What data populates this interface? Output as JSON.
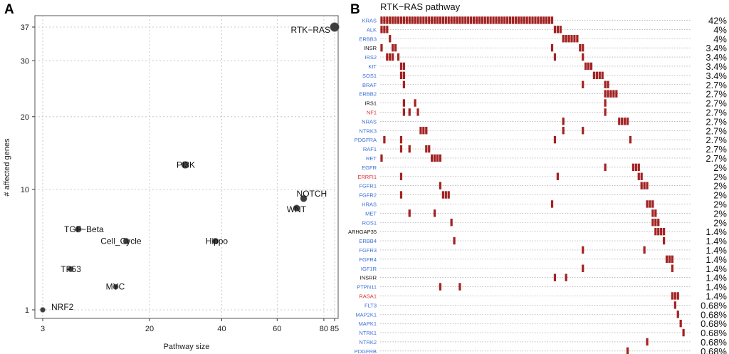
{
  "chart_data": [
    {
      "panel": "A",
      "type": "scatter",
      "title": "",
      "xlabel": "Pathway size",
      "ylabel": "# affected genes",
      "x_ticks": [
        "3",
        "20",
        "40",
        "60",
        "80",
        "85"
      ],
      "y_ticks": [
        "1",
        "10",
        "20",
        "30",
        "37"
      ],
      "x_scale": "sqrt",
      "y_scale": "sqrt",
      "xlim": [
        3,
        85
      ],
      "ylim": [
        1,
        37
      ],
      "points": [
        {
          "label": "RTK−RAS",
          "x": 85,
          "y": 37
        },
        {
          "label": "PI3K",
          "x": 29,
          "y": 13
        },
        {
          "label": "NOTCH",
          "x": 71,
          "y": 9
        },
        {
          "label": "WNT",
          "x": 68,
          "y": 8
        },
        {
          "label": "TGF−Beta",
          "x": 7,
          "y": 6
        },
        {
          "label": "Cell_Cycle",
          "x": 15,
          "y": 5
        },
        {
          "label": "Hippo",
          "x": 38,
          "y": 5
        },
        {
          "label": "TP53",
          "x": 6,
          "y": 3
        },
        {
          "label": "MYC",
          "x": 13,
          "y": 2
        },
        {
          "label": "NRF2",
          "x": 3,
          "y": 1
        }
      ]
    },
    {
      "panel": "B",
      "type": "heatmap",
      "title": "RTK−RAS pathway",
      "genes": [
        {
          "name": "KRAS",
          "pct": "42%",
          "color": "#3b6fd8",
          "spans": [
            [
              0,
              62
            ]
          ]
        },
        {
          "name": "ALK",
          "pct": "4%",
          "color": "#3b6fd8",
          "spans": [
            [
              0,
              3
            ],
            [
              62,
              65
            ]
          ]
        },
        {
          "name": "ERBB3",
          "pct": "4%",
          "color": "#3b6fd8",
          "spans": [
            [
              3,
              4
            ],
            [
              65,
              71
            ]
          ]
        },
        {
          "name": "INSR",
          "pct": "3.4%",
          "color": "#111111",
          "spans": [
            [
              0,
              1
            ],
            [
              4,
              6
            ],
            [
              61,
              62
            ],
            [
              71,
              73
            ]
          ]
        },
        {
          "name": "IRS2",
          "pct": "3.4%",
          "color": "#3b6fd8",
          "spans": [
            [
              2,
              5
            ],
            [
              6,
              7
            ],
            [
              62,
              63
            ],
            [
              72,
              73
            ]
          ]
        },
        {
          "name": "KIT",
          "pct": "3.4%",
          "color": "#3b6fd8",
          "spans": [
            [
              7,
              9
            ],
            [
              73,
              76
            ]
          ]
        },
        {
          "name": "SOS1",
          "pct": "3.4%",
          "color": "#3b6fd8",
          "spans": [
            [
              7,
              9
            ],
            [
              76,
              80
            ]
          ]
        },
        {
          "name": "BRAF",
          "pct": "2.7%",
          "color": "#3b6fd8",
          "spans": [
            [
              8,
              9
            ],
            [
              72,
              73
            ],
            [
              80,
              82
            ]
          ]
        },
        {
          "name": "ERBB2",
          "pct": "2.7%",
          "color": "#3b6fd8",
          "spans": [
            [
              80,
              85
            ]
          ]
        },
        {
          "name": "IRS1",
          "pct": "2.7%",
          "color": "#111111",
          "spans": [
            [
              8,
              9
            ],
            [
              12,
              13
            ],
            [
              80,
              81
            ]
          ]
        },
        {
          "name": "NF1",
          "pct": "2.7%",
          "color": "#e03030",
          "spans": [
            [
              8,
              9
            ],
            [
              10,
              11
            ],
            [
              13,
              14
            ],
            [
              80,
              81
            ]
          ]
        },
        {
          "name": "NRAS",
          "pct": "2.7%",
          "color": "#3b6fd8",
          "spans": [
            [
              65,
              66
            ],
            [
              85,
              89
            ]
          ]
        },
        {
          "name": "NTRK3",
          "pct": "2.7%",
          "color": "#3b6fd8",
          "spans": [
            [
              14,
              17
            ],
            [
              65,
              66
            ],
            [
              72,
              73
            ]
          ]
        },
        {
          "name": "PDGFRA",
          "pct": "2.7%",
          "color": "#3b6fd8",
          "spans": [
            [
              1,
              2
            ],
            [
              7,
              8
            ],
            [
              62,
              63
            ],
            [
              89,
              90
            ]
          ]
        },
        {
          "name": "RAF1",
          "pct": "2.7%",
          "color": "#3b6fd8",
          "spans": [
            [
              7,
              8
            ],
            [
              10,
              11
            ],
            [
              16,
              18
            ]
          ]
        },
        {
          "name": "RET",
          "pct": "2.7%",
          "color": "#3b6fd8",
          "spans": [
            [
              0,
              1
            ],
            [
              18,
              22
            ]
          ]
        },
        {
          "name": "EGFR",
          "pct": "2%",
          "color": "#3b6fd8",
          "spans": [
            [
              80,
              81
            ],
            [
              90,
              93
            ]
          ]
        },
        {
          "name": "ERRFI1",
          "pct": "2%",
          "color": "#e03030",
          "spans": [
            [
              7,
              8
            ],
            [
              63,
              64
            ],
            [
              92,
              94
            ]
          ]
        },
        {
          "name": "FGFR1",
          "pct": "2%",
          "color": "#3b6fd8",
          "spans": [
            [
              21,
              22
            ],
            [
              93,
              96
            ]
          ]
        },
        {
          "name": "FGFR2",
          "pct": "2%",
          "color": "#3b6fd8",
          "spans": [
            [
              7,
              8
            ],
            [
              22,
              25
            ]
          ]
        },
        {
          "name": "HRAS",
          "pct": "2%",
          "color": "#3b6fd8",
          "spans": [
            [
              61,
              62
            ],
            [
              95,
              98
            ]
          ]
        },
        {
          "name": "MET",
          "pct": "2%",
          "color": "#3b6fd8",
          "spans": [
            [
              10,
              11
            ],
            [
              19,
              20
            ],
            [
              97,
              99
            ]
          ]
        },
        {
          "name": "ROS1",
          "pct": "2%",
          "color": "#3b6fd8",
          "spans": [
            [
              25,
              26
            ],
            [
              97,
              100
            ]
          ]
        },
        {
          "name": "ARHGAP35",
          "pct": "1.4%",
          "color": "#111111",
          "spans": [
            [
              98,
              102
            ]
          ]
        },
        {
          "name": "ERBB4",
          "pct": "1.4%",
          "color": "#3b6fd8",
          "spans": [
            [
              26,
              27
            ],
            [
              101,
              102
            ]
          ]
        },
        {
          "name": "FGFR3",
          "pct": "1.4%",
          "color": "#3b6fd8",
          "spans": [
            [
              72,
              73
            ],
            [
              94,
              95
            ]
          ]
        },
        {
          "name": "FGFR4",
          "pct": "1.4%",
          "color": "#3b6fd8",
          "spans": [
            [
              102,
              105
            ]
          ]
        },
        {
          "name": "IGF1R",
          "pct": "1.4%",
          "color": "#3b6fd8",
          "spans": [
            [
              72,
              73
            ],
            [
              104,
              105
            ]
          ]
        },
        {
          "name": "INSRR",
          "pct": "1.4%",
          "color": "#111111",
          "spans": [
            [
              62,
              63
            ],
            [
              66,
              67
            ]
          ]
        },
        {
          "name": "PTPN11",
          "pct": "1.4%",
          "color": "#3b6fd8",
          "spans": [
            [
              21,
              22
            ],
            [
              28,
              29
            ]
          ]
        },
        {
          "name": "RASA1",
          "pct": "1.4%",
          "color": "#e03030",
          "spans": [
            [
              104,
              107
            ]
          ]
        },
        {
          "name": "FLT3",
          "pct": "0.68%",
          "color": "#3b6fd8",
          "spans": [
            [
              105,
              106
            ]
          ]
        },
        {
          "name": "MAP2K1",
          "pct": "0.68%",
          "color": "#3b6fd8",
          "spans": [
            [
              106,
              107
            ]
          ]
        },
        {
          "name": "MAPK1",
          "pct": "0.68%",
          "color": "#3b6fd8",
          "spans": [
            [
              107,
              108
            ]
          ]
        },
        {
          "name": "NTRK1",
          "pct": "0.68%",
          "color": "#3b6fd8",
          "spans": [
            [
              108,
              109
            ]
          ]
        },
        {
          "name": "NTRK2",
          "pct": "0.68%",
          "color": "#3b6fd8",
          "spans": [
            [
              95,
              96
            ]
          ]
        },
        {
          "name": "PDGFRB",
          "pct": "0.68%",
          "color": "#3b6fd8",
          "spans": [
            [
              88,
              89
            ]
          ]
        }
      ],
      "n_samples": 110,
      "alteration_color": "#a32222"
    }
  ],
  "panels": {
    "a_letter": "A",
    "b_letter": "B"
  }
}
